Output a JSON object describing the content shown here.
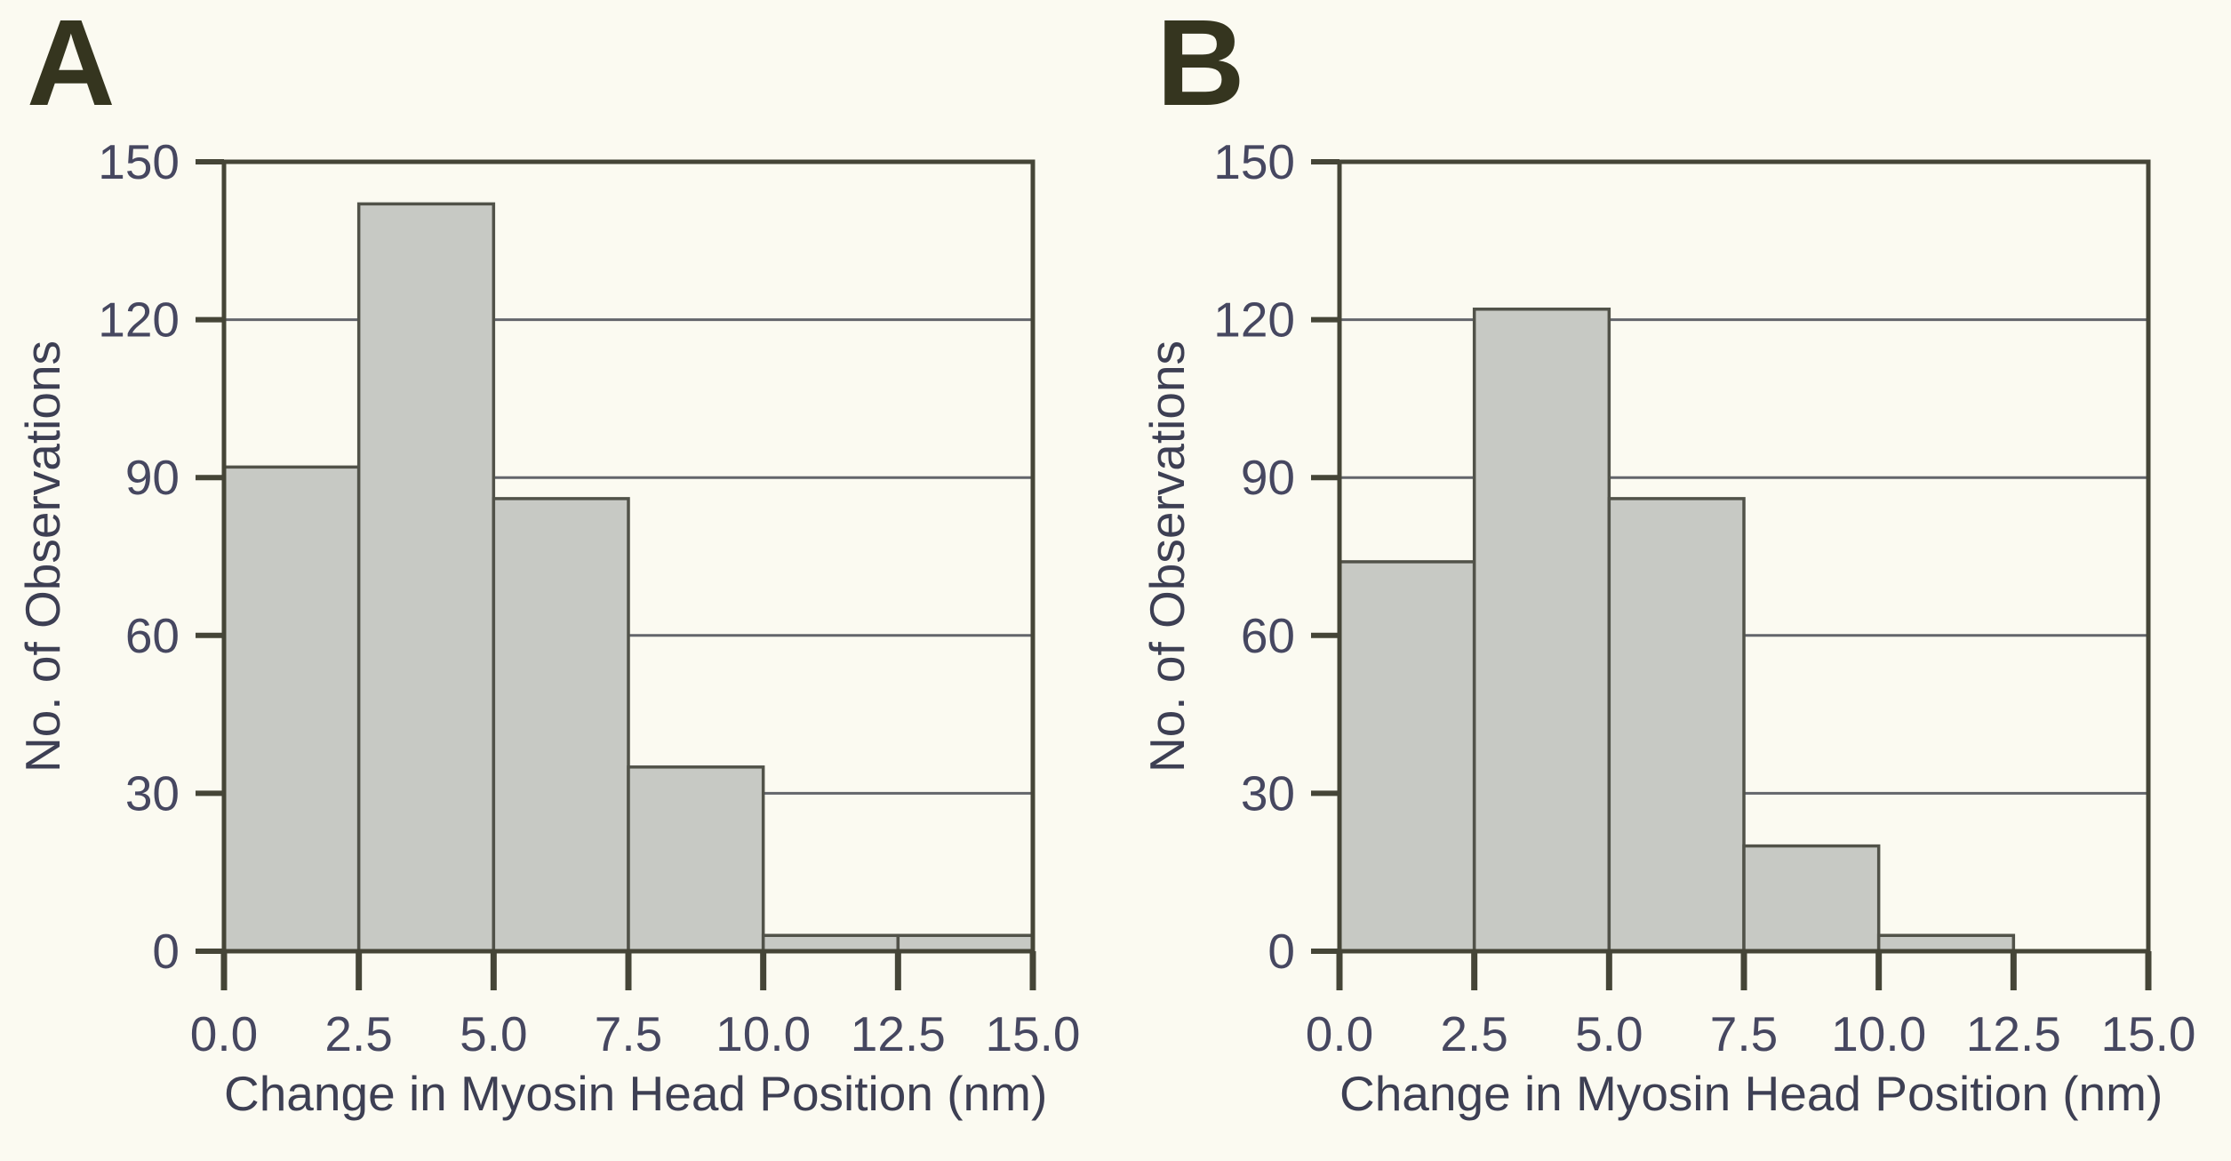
{
  "figure": {
    "colors": {
      "page_background": "#fbfaf1",
      "bar_fill": "#c7c9c4",
      "bar_stroke": "#515249",
      "axis_color": "#454537",
      "grid_color": "#63656b",
      "tick_label_color": "#464760",
      "axis_title_color": "#3d3f53",
      "panel_letter_color": "#35351f"
    }
  },
  "chart_data": [
    {
      "type": "bar",
      "panel": "A",
      "title": "",
      "xlabel": "Change in Myosin Head Position (nm)",
      "ylabel": "No. of Observations",
      "bin_edges_nm": [
        0,
        2.5,
        5.0,
        7.5,
        10.0,
        12.5,
        15.0
      ],
      "categories": [
        "0.0-2.5",
        "2.5-5.0",
        "5.0-7.5",
        "7.5-10.0",
        "10.0-12.5",
        "12.5-15.0"
      ],
      "values": [
        92,
        142,
        86,
        35,
        3,
        3
      ],
      "x_ticks": [
        "0.0",
        "2.5",
        "5.0",
        "7.5",
        "10.0",
        "12.5",
        "15.0"
      ],
      "y_ticks": [
        0,
        30,
        60,
        90,
        120,
        150
      ],
      "xlim": [
        0,
        15
      ],
      "ylim": [
        0,
        150
      ],
      "grid": true,
      "legend": false
    },
    {
      "type": "bar",
      "panel": "B",
      "title": "",
      "xlabel": "Change in Myosin Head Position (nm)",
      "ylabel": "No. of Observations",
      "bin_edges_nm": [
        0,
        2.5,
        5.0,
        7.5,
        10.0,
        12.5,
        15.0
      ],
      "categories": [
        "0.0-2.5",
        "2.5-5.0",
        "5.0-7.5",
        "7.5-10.0",
        "10.0-12.5",
        "12.5-15.0"
      ],
      "values": [
        74,
        122,
        86,
        20,
        3,
        0
      ],
      "x_ticks": [
        "0.0",
        "2.5",
        "5.0",
        "7.5",
        "10.0",
        "12.5",
        "15.0"
      ],
      "y_ticks": [
        0,
        30,
        60,
        90,
        120,
        150
      ],
      "xlim": [
        0,
        15
      ],
      "ylim": [
        0,
        150
      ],
      "grid": true,
      "legend": false
    }
  ]
}
